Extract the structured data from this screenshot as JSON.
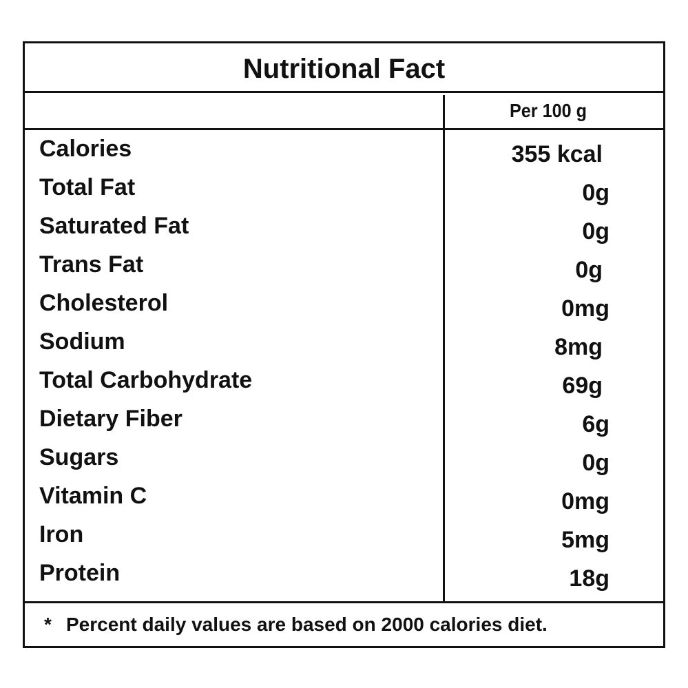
{
  "label": {
    "title": "Nutritional Fact",
    "serving_header": "Per 100 g",
    "rows": [
      {
        "name": "Calories",
        "value": "355 kcal"
      },
      {
        "name": "Total Fat",
        "value": "0g"
      },
      {
        "name": "Saturated Fat",
        "value": "0g"
      },
      {
        "name": "Trans Fat",
        "value": "0g"
      },
      {
        "name": "Cholesterol",
        "value": "0mg"
      },
      {
        "name": "Sodium",
        "value": "8mg"
      },
      {
        "name": "Total Carbohydrate",
        "value": "69g"
      },
      {
        "name": "Dietary Fiber",
        "value": "6g"
      },
      {
        "name": "Sugars",
        "value": "0g"
      },
      {
        "name": "Vitamin C",
        "value": "0mg"
      },
      {
        "name": "Iron",
        "value": "5mg"
      },
      {
        "name": "Protein",
        "value": "18g"
      }
    ],
    "footnote_marker": "*",
    "footnote": "Percent daily values are based on 2000 calories diet."
  }
}
